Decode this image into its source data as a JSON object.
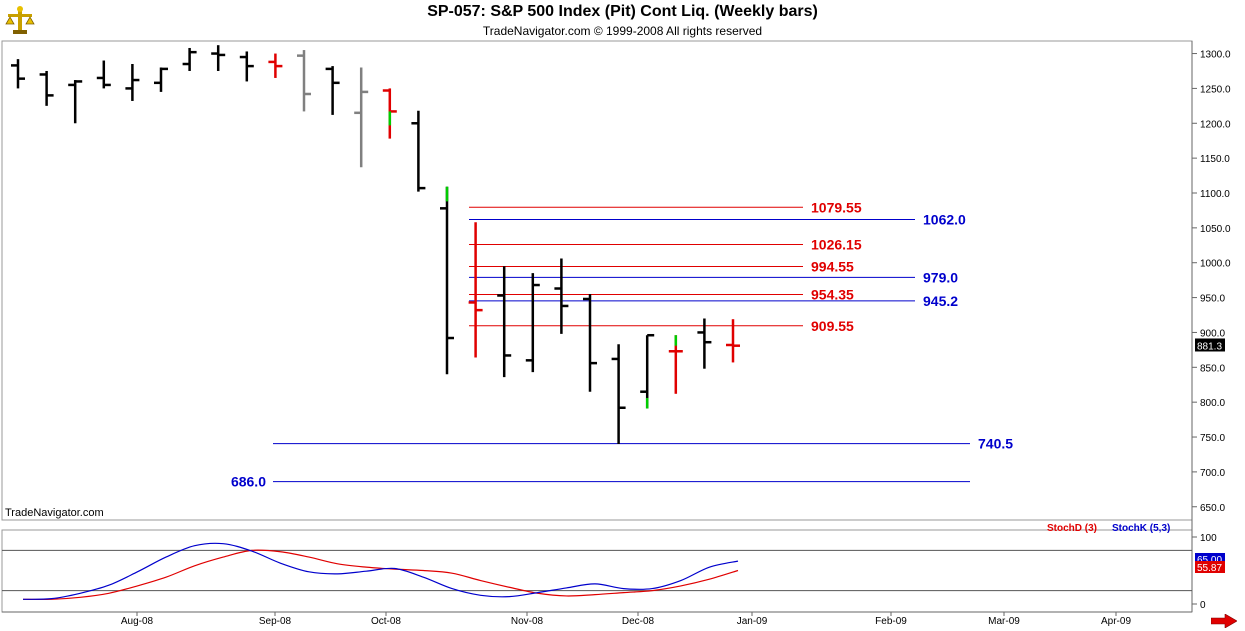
{
  "header": {
    "title": "SP-057:  S&P 500 Index (Pit) Cont Liq.  (Weekly bars)",
    "copyright": "TradeNavigator.com © 1999-2008 All rights reserved",
    "watermark": "TradeNavigator.com"
  },
  "icons": {
    "logo": "scales-logo-icon",
    "scroll": "right-arrow-icon"
  },
  "colors": {
    "bar_black": "#000000",
    "bar_gray": "#808080",
    "bar_red": "#e00000",
    "bar_green": "#00cc00",
    "level_red": "#e00000",
    "level_blue": "#0000cc",
    "stoch_d": "#e00000",
    "stoch_k": "#0000cc"
  },
  "chart_data": [
    {
      "type": "ohlc",
      "title": "SP-057:  S&P 500 Index (Pit) Cont Liq.  (Weekly bars)",
      "ylim": [
        631,
        1318
      ],
      "yticks": [
        "1300.0",
        "1250.0",
        "1200.0",
        "1150.0",
        "1100.0",
        "1050.0",
        "1000.0",
        "950.0",
        "900.0",
        "850.0",
        "800.0",
        "750.0",
        "700.0",
        "650.0"
      ],
      "ytick_values": [
        1300,
        1250,
        1200,
        1150,
        1100,
        1050,
        1000,
        950,
        900,
        850,
        800,
        750,
        700,
        650
      ],
      "xticks": [
        "Aug-08",
        "Sep-08",
        "Oct-08",
        "Nov-08",
        "Dec-08",
        "Jan-09",
        "Feb-09",
        "Mar-09",
        "Apr-09"
      ],
      "last_price": "881.3",
      "bars": [
        {
          "o": 1283,
          "h": 1292,
          "l": 1250,
          "c": 1264,
          "color": "black"
        },
        {
          "o": 1270,
          "h": 1275,
          "l": 1225,
          "c": 1240,
          "color": "black"
        },
        {
          "o": 1255,
          "h": 1262,
          "l": 1200,
          "c": 1260,
          "color": "black"
        },
        {
          "o": 1265,
          "h": 1290,
          "l": 1250,
          "c": 1255,
          "color": "black"
        },
        {
          "o": 1250,
          "h": 1285,
          "l": 1232,
          "c": 1262,
          "color": "black"
        },
        {
          "o": 1258,
          "h": 1280,
          "l": 1245,
          "c": 1278,
          "color": "black"
        },
        {
          "o": 1285,
          "h": 1308,
          "l": 1275,
          "c": 1302,
          "color": "black"
        },
        {
          "o": 1300,
          "h": 1312,
          "l": 1275,
          "c": 1298,
          "color": "black"
        },
        {
          "o": 1295,
          "h": 1303,
          "l": 1260,
          "c": 1282,
          "color": "black"
        },
        {
          "o": 1288,
          "h": 1300,
          "l": 1265,
          "c": 1282,
          "color": "red"
        },
        {
          "o": 1297,
          "h": 1305,
          "l": 1217,
          "c": 1242,
          "color": "gray"
        },
        {
          "o": 1278,
          "h": 1282,
          "l": 1212,
          "c": 1258,
          "color": "black"
        },
        {
          "o": 1215,
          "h": 1280,
          "l": 1137,
          "c": 1245,
          "color": "gray"
        },
        {
          "o": 1247,
          "h": 1250,
          "l": 1178,
          "c": 1217,
          "color": "red"
        },
        {
          "o": 1200,
          "h": 1218,
          "l": 1102,
          "c": 1107,
          "color": "black"
        },
        {
          "o": 1078,
          "h": 1109,
          "l": 840,
          "c": 892,
          "color": "black"
        },
        {
          "o": 943,
          "h": 1058,
          "l": 864,
          "c": 932,
          "color": "red"
        },
        {
          "o": 953,
          "h": 995,
          "l": 836,
          "c": 867,
          "color": "black"
        },
        {
          "o": 860,
          "h": 985,
          "l": 843,
          "c": 968,
          "color": "black"
        },
        {
          "o": 963,
          "h": 1006,
          "l": 898,
          "c": 938,
          "color": "black"
        },
        {
          "o": 948,
          "h": 955,
          "l": 815,
          "c": 856,
          "color": "black"
        },
        {
          "o": 862,
          "h": 883,
          "l": 740,
          "c": 792,
          "color": "black"
        },
        {
          "o": 815,
          "h": 896,
          "l": 791,
          "c": 896,
          "color": "black"
        },
        {
          "o": 873,
          "h": 896,
          "l": 812,
          "c": 873,
          "color": "red"
        },
        {
          "o": 900,
          "h": 920,
          "l": 848,
          "c": 886,
          "color": "black"
        },
        {
          "o": 882,
          "h": 919,
          "l": 857,
          "c": 881,
          "color": "red"
        }
      ],
      "levels": [
        {
          "value": 1079.55,
          "label": "1079.55",
          "color": "red"
        },
        {
          "value": 1062.0,
          "label": "1062.0",
          "color": "blue"
        },
        {
          "value": 1026.15,
          "label": "1026.15",
          "color": "red"
        },
        {
          "value": 994.55,
          "label": "994.55",
          "color": "red"
        },
        {
          "value": 979.0,
          "label": "979.0",
          "color": "blue"
        },
        {
          "value": 954.35,
          "label": "954.35",
          "color": "red"
        },
        {
          "value": 945.2,
          "label": "945.2",
          "color": "blue"
        },
        {
          "value": 909.55,
          "label": "909.55",
          "color": "red"
        },
        {
          "value": 740.5,
          "label": "740.5",
          "color": "blue"
        },
        {
          "value": 686.0,
          "label": "686.0",
          "color": "blue"
        }
      ]
    },
    {
      "type": "line",
      "ylim": [
        0,
        100
      ],
      "yticks": [
        "100",
        "0"
      ],
      "ytick_values": [
        100,
        0
      ],
      "guide_lines": [
        80,
        20
      ],
      "series": [
        {
          "name": "StochD (3)",
          "last_label": "55.87",
          "color": "red",
          "values": [
            7,
            7,
            10,
            16,
            27,
            40,
            57,
            70,
            80,
            78,
            70,
            60,
            55,
            52,
            50,
            46,
            35,
            25,
            16,
            12,
            14,
            17,
            20,
            27,
            37,
            50
          ]
        },
        {
          "name": "StochK (5,3)",
          "last_label": "65.00",
          "color": "blue",
          "values": [
            7,
            8,
            16,
            28,
            48,
            70,
            87,
            90,
            79,
            61,
            48,
            45,
            49,
            53,
            40,
            23,
            13,
            11,
            17,
            24,
            30,
            23,
            23,
            35,
            55,
            64
          ]
        }
      ]
    }
  ]
}
